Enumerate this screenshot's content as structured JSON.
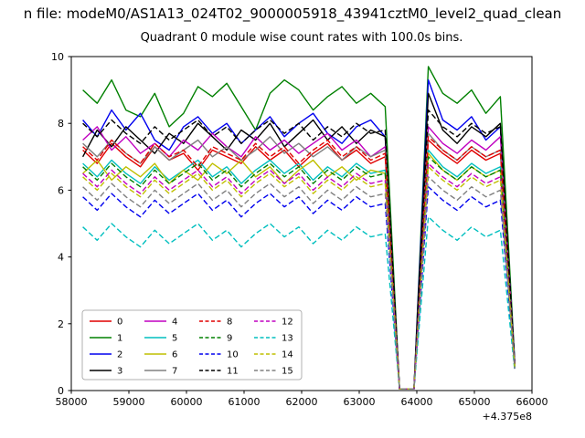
{
  "figure": {
    "suptitle": "n file: modeM0/AS1A13_024T02_9000005918_43941cztM0_level2_quad_clean",
    "title": "Quadrant 0 module wise count rates with 100.0s bins.",
    "x_offset_label": "+4.375e8"
  },
  "chart_data": {
    "type": "line",
    "title": "Quadrant 0 module wise count rates with 100.0s bins.",
    "xlabel": "",
    "ylabel": "",
    "xlim": [
      58000,
      66000
    ],
    "ylim": [
      0,
      10
    ],
    "x_ticks": [
      58000,
      59000,
      60000,
      61000,
      62000,
      63000,
      64000,
      65000,
      66000
    ],
    "y_ticks": [
      0,
      2,
      4,
      6,
      8,
      10
    ],
    "x_offset": "+4.375e8",
    "grid": false,
    "legend_position": "lower left",
    "x": [
      58200,
      58450,
      58700,
      58950,
      59200,
      59450,
      59700,
      59950,
      60200,
      60450,
      60700,
      60950,
      61200,
      61450,
      61700,
      61950,
      62200,
      62450,
      62700,
      62950,
      63200,
      63450,
      63700,
      63950,
      64200,
      64450,
      64700,
      64950,
      65200,
      65450,
      65700
    ],
    "series": [
      {
        "name": "0",
        "color": "#e00000",
        "style": "solid",
        "values": [
          7.2,
          6.8,
          7.4,
          7.0,
          6.7,
          7.3,
          6.9,
          7.1,
          6.6,
          7.2,
          7.0,
          6.8,
          7.3,
          6.9,
          7.2,
          6.7,
          7.1,
          7.4,
          6.9,
          7.2,
          6.8,
          7.0,
          0.05,
          0.05,
          7.5,
          7.1,
          6.8,
          7.2,
          6.9,
          7.1,
          0.75
        ]
      },
      {
        "name": "1",
        "color": "#008000",
        "style": "solid",
        "values": [
          9.0,
          8.6,
          9.3,
          8.4,
          8.2,
          8.9,
          7.9,
          8.3,
          9.1,
          8.8,
          9.2,
          8.5,
          7.8,
          8.9,
          9.3,
          9.0,
          8.4,
          8.8,
          9.1,
          8.6,
          8.9,
          8.5,
          0.05,
          0.05,
          9.7,
          8.9,
          8.6,
          9.0,
          8.3,
          8.8,
          0.9
        ]
      },
      {
        "name": "2",
        "color": "#0000ee",
        "style": "solid",
        "values": [
          8.1,
          7.6,
          8.4,
          7.8,
          8.3,
          7.5,
          7.2,
          7.9,
          8.2,
          7.7,
          8.0,
          7.4,
          7.8,
          8.2,
          7.6,
          8.0,
          8.3,
          7.7,
          7.4,
          7.9,
          8.1,
          7.6,
          0.05,
          0.05,
          9.3,
          8.1,
          7.8,
          8.2,
          7.5,
          7.9,
          0.85
        ]
      },
      {
        "name": "3",
        "color": "#000000",
        "style": "solid",
        "values": [
          7.0,
          7.8,
          7.3,
          7.9,
          7.5,
          7.1,
          7.7,
          7.4,
          8.0,
          7.6,
          7.2,
          7.8,
          7.5,
          8.0,
          7.3,
          7.7,
          8.1,
          7.5,
          7.9,
          7.4,
          7.8,
          7.6,
          0.05,
          0.05,
          8.9,
          7.8,
          7.4,
          7.9,
          7.6,
          8.0,
          0.8
        ]
      },
      {
        "name": "4",
        "color": "#c000c0",
        "style": "solid",
        "values": [
          7.5,
          7.9,
          7.2,
          7.6,
          7.1,
          7.4,
          7.0,
          7.5,
          7.2,
          7.7,
          7.3,
          7.0,
          7.6,
          7.2,
          7.5,
          7.1,
          7.4,
          7.7,
          7.2,
          7.5,
          7.0,
          7.3,
          0.05,
          0.05,
          7.9,
          7.4,
          7.1,
          7.5,
          7.2,
          7.6,
          0.8
        ]
      },
      {
        "name": "5",
        "color": "#00bfbf",
        "style": "solid",
        "values": [
          6.8,
          6.4,
          6.9,
          6.5,
          6.2,
          6.7,
          6.3,
          6.6,
          6.9,
          6.4,
          6.7,
          6.2,
          6.6,
          6.9,
          6.5,
          6.8,
          6.3,
          6.7,
          6.4,
          6.8,
          6.5,
          6.6,
          0.05,
          0.05,
          7.2,
          6.7,
          6.4,
          6.8,
          6.5,
          6.7,
          0.7
        ]
      },
      {
        "name": "6",
        "color": "#bfbf00",
        "style": "solid",
        "values": [
          6.5,
          6.9,
          6.3,
          6.7,
          6.4,
          6.8,
          6.2,
          6.6,
          6.3,
          6.8,
          6.5,
          6.9,
          6.4,
          6.7,
          6.2,
          6.6,
          6.9,
          6.4,
          6.7,
          6.3,
          6.6,
          6.5,
          0.05,
          0.05,
          7.1,
          6.6,
          6.3,
          6.7,
          6.4,
          6.6,
          0.7
        ]
      },
      {
        "name": "7",
        "color": "#808080",
        "style": "solid",
        "values": [
          7.4,
          7.0,
          7.5,
          7.1,
          6.8,
          7.3,
          6.9,
          7.2,
          7.5,
          7.0,
          7.3,
          6.9,
          7.2,
          7.6,
          7.1,
          7.4,
          7.0,
          7.3,
          6.9,
          7.3,
          7.0,
          7.2,
          0.05,
          0.05,
          7.7,
          7.2,
          6.9,
          7.3,
          7.0,
          7.2,
          0.75
        ]
      },
      {
        "name": "8",
        "color": "#e00000",
        "style": "dashed",
        "values": [
          7.3,
          6.9,
          7.5,
          7.1,
          6.8,
          7.4,
          7.0,
          7.2,
          6.7,
          7.3,
          7.1,
          6.9,
          7.4,
          7.0,
          7.3,
          6.8,
          7.2,
          7.5,
          7.0,
          7.3,
          6.9,
          7.1,
          0.05,
          0.05,
          7.6,
          7.2,
          6.9,
          7.3,
          7.0,
          7.2,
          0.75
        ]
      },
      {
        "name": "9",
        "color": "#008000",
        "style": "dashed",
        "values": [
          6.7,
          6.3,
          6.8,
          6.4,
          6.1,
          6.6,
          6.2,
          6.5,
          6.8,
          6.3,
          6.6,
          6.1,
          6.5,
          6.8,
          6.4,
          6.7,
          6.2,
          6.6,
          6.3,
          6.7,
          6.4,
          6.5,
          0.05,
          0.05,
          7.0,
          6.6,
          6.3,
          6.7,
          6.4,
          6.6,
          0.7
        ]
      },
      {
        "name": "10",
        "color": "#0000ee",
        "style": "dashed",
        "values": [
          5.8,
          5.4,
          5.9,
          5.5,
          5.2,
          5.7,
          5.3,
          5.6,
          5.9,
          5.4,
          5.7,
          5.2,
          5.6,
          5.9,
          5.5,
          5.8,
          5.3,
          5.7,
          5.4,
          5.8,
          5.5,
          5.6,
          0.05,
          0.05,
          6.1,
          5.7,
          5.4,
          5.8,
          5.5,
          5.7,
          0.65
        ]
      },
      {
        "name": "11",
        "color": "#000000",
        "style": "dashed",
        "values": [
          8.0,
          7.6,
          8.1,
          7.7,
          7.4,
          7.9,
          7.5,
          7.8,
          8.1,
          7.6,
          7.9,
          7.4,
          7.8,
          8.1,
          7.7,
          8.0,
          7.5,
          7.9,
          7.6,
          8.0,
          7.7,
          7.8,
          0.05,
          0.05,
          8.4,
          7.9,
          7.6,
          8.0,
          7.7,
          7.9,
          0.8
        ]
      },
      {
        "name": "12",
        "color": "#c000c0",
        "style": "dashed",
        "values": [
          6.5,
          6.1,
          6.6,
          6.2,
          5.9,
          6.4,
          6.0,
          6.3,
          6.6,
          6.1,
          6.4,
          5.9,
          6.3,
          6.6,
          6.2,
          6.5,
          6.0,
          6.4,
          6.1,
          6.5,
          6.2,
          6.3,
          0.05,
          0.05,
          6.8,
          6.4,
          6.1,
          6.5,
          6.2,
          6.4,
          0.7
        ]
      },
      {
        "name": "13",
        "color": "#00bfbf",
        "style": "dashed",
        "values": [
          4.9,
          4.5,
          5.0,
          4.6,
          4.3,
          4.8,
          4.4,
          4.7,
          5.0,
          4.5,
          4.8,
          4.3,
          4.7,
          5.0,
          4.6,
          4.9,
          4.4,
          4.8,
          4.5,
          4.9,
          4.6,
          4.7,
          0.05,
          0.05,
          5.2,
          4.8,
          4.5,
          4.9,
          4.6,
          4.8,
          0.6
        ]
      },
      {
        "name": "14",
        "color": "#bfbf00",
        "style": "dashed",
        "values": [
          6.4,
          6.0,
          6.5,
          6.1,
          5.8,
          6.3,
          5.9,
          6.2,
          6.5,
          6.0,
          6.3,
          5.8,
          6.2,
          6.5,
          6.1,
          6.4,
          5.9,
          6.3,
          6.0,
          6.4,
          6.1,
          6.2,
          0.05,
          0.05,
          6.7,
          6.3,
          6.0,
          6.4,
          6.1,
          6.3,
          0.7
        ]
      },
      {
        "name": "15",
        "color": "#808080",
        "style": "dashed",
        "values": [
          6.1,
          5.7,
          6.2,
          5.8,
          5.5,
          6.0,
          5.6,
          5.9,
          6.2,
          5.7,
          6.0,
          5.5,
          5.9,
          6.2,
          5.8,
          6.1,
          5.6,
          6.0,
          5.7,
          6.1,
          5.8,
          5.9,
          0.05,
          0.05,
          6.4,
          6.0,
          5.7,
          6.1,
          5.8,
          6.0,
          0.65
        ]
      }
    ]
  }
}
